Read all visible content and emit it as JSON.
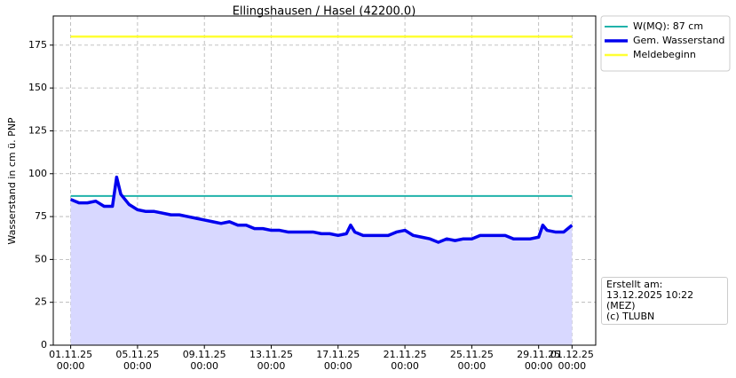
{
  "chart_data": {
    "type": "line",
    "title": "Ellingshausen / Hasel (42200.0)",
    "ylabel": "Wasserstand in cm ü. PNP",
    "annotation": "Erstellt am:\n13.12.2025 10:22 (MEZ)\n(c) TLUBN",
    "xlim": [
      "2025-10-30 23:00",
      "2025-12-02 10:00"
    ],
    "xticks": [
      {
        "value": "2025-11-01 00:00",
        "label": "01.11.25\n00:00"
      },
      {
        "value": "2025-11-05 00:00",
        "label": "05.11.25\n00:00"
      },
      {
        "value": "2025-11-09 00:00",
        "label": "09.11.25\n00:00"
      },
      {
        "value": "2025-11-13 00:00",
        "label": "13.11.25\n00:00"
      },
      {
        "value": "2025-11-17 00:00",
        "label": "17.11.25\n00:00"
      },
      {
        "value": "2025-11-21 00:00",
        "label": "21.11.25\n00:00"
      },
      {
        "value": "2025-11-25 00:00",
        "label": "25.11.25\n00:00"
      },
      {
        "value": "2025-11-29 00:00",
        "label": "29.11.25\n00:00"
      },
      {
        "value": "2025-12-01 00:00",
        "label": "01.12.25\n00:00"
      }
    ],
    "ylim": [
      0,
      192
    ],
    "yticks": [
      0,
      25,
      50,
      75,
      100,
      125,
      150,
      175
    ],
    "grid": true,
    "legend": "outside-upper-right",
    "series": [
      {
        "name": "W(MQ): 87 cm",
        "color": "#20b2aa",
        "width": 2,
        "x": [
          "2025-11-01 00:00",
          "2025-12-01 00:00"
        ],
        "values": [
          87,
          87
        ]
      },
      {
        "name": "Gem. Wasserstand",
        "color": "#0000ee",
        "width": 3.5,
        "fill": "#d8d8ff",
        "x": [
          "2025-11-01 00:00",
          "2025-11-01 12:00",
          "2025-11-02 00:00",
          "2025-11-02 12:00",
          "2025-11-03 00:00",
          "2025-11-03 12:00",
          "2025-11-03 18:00",
          "2025-11-04 00:00",
          "2025-11-04 12:00",
          "2025-11-05 00:00",
          "2025-11-05 12:00",
          "2025-11-06 00:00",
          "2025-11-06 12:00",
          "2025-11-07 00:00",
          "2025-11-07 12:00",
          "2025-11-08 00:00",
          "2025-11-08 12:00",
          "2025-11-09 00:00",
          "2025-11-09 12:00",
          "2025-11-10 00:00",
          "2025-11-10 12:00",
          "2025-11-11 00:00",
          "2025-11-11 12:00",
          "2025-11-12 00:00",
          "2025-11-12 12:00",
          "2025-11-13 00:00",
          "2025-11-13 12:00",
          "2025-11-14 00:00",
          "2025-11-14 12:00",
          "2025-11-15 00:00",
          "2025-11-15 12:00",
          "2025-11-16 00:00",
          "2025-11-16 12:00",
          "2025-11-17 00:00",
          "2025-11-17 12:00",
          "2025-11-17 18:00",
          "2025-11-18 00:00",
          "2025-11-18 12:00",
          "2025-11-19 00:00",
          "2025-11-19 12:00",
          "2025-11-20 00:00",
          "2025-11-20 12:00",
          "2025-11-21 00:00",
          "2025-11-21 12:00",
          "2025-11-22 00:00",
          "2025-11-22 12:00",
          "2025-11-23 00:00",
          "2025-11-23 12:00",
          "2025-11-24 00:00",
          "2025-11-24 12:00",
          "2025-11-25 00:00",
          "2025-11-25 12:00",
          "2025-11-26 00:00",
          "2025-11-26 12:00",
          "2025-11-27 00:00",
          "2025-11-27 12:00",
          "2025-11-28 00:00",
          "2025-11-28 12:00",
          "2025-11-29 00:00",
          "2025-11-29 06:00",
          "2025-11-29 12:00",
          "2025-11-30 00:00",
          "2025-11-30 12:00",
          "2025-12-01 00:00"
        ],
        "values": [
          85,
          83,
          83,
          84,
          81,
          81,
          98,
          88,
          82,
          79,
          78,
          78,
          77,
          76,
          76,
          75,
          74,
          73,
          72,
          71,
          72,
          70,
          70,
          68,
          68,
          67,
          67,
          66,
          66,
          66,
          66,
          65,
          65,
          64,
          65,
          70,
          66,
          64,
          64,
          64,
          64,
          66,
          67,
          64,
          63,
          62,
          60,
          62,
          61,
          62,
          62,
          64,
          64,
          64,
          64,
          62,
          62,
          62,
          63,
          70,
          67,
          66,
          66,
          70
        ]
      },
      {
        "name": "Meldebeginn",
        "color": "#ffff33",
        "width": 2.5,
        "x": [
          "2025-11-01 00:00",
          "2025-12-01 00:00"
        ],
        "values": [
          180,
          180
        ]
      }
    ]
  }
}
